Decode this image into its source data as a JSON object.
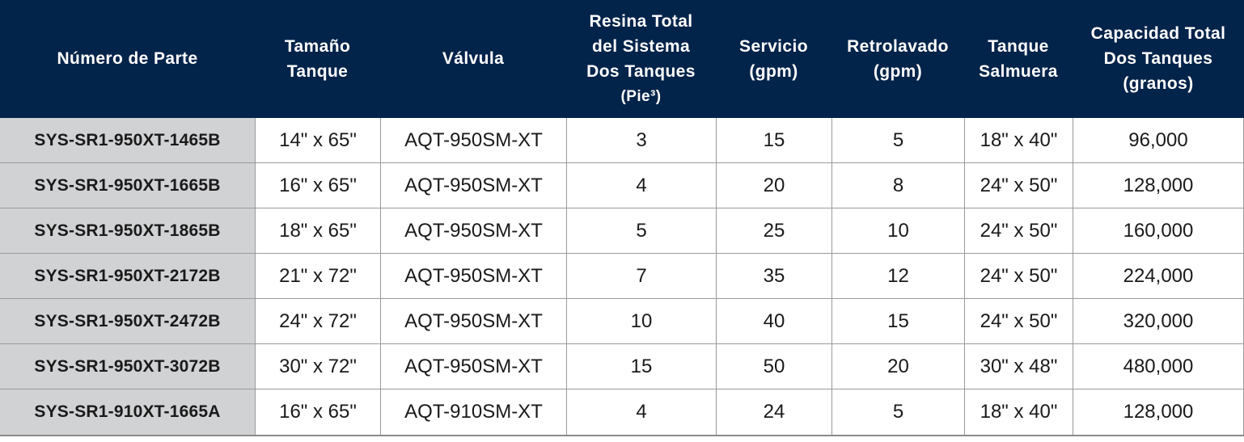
{
  "headers": [
    [
      "Número de Parte"
    ],
    [
      "Tamaño",
      "Tanque"
    ],
    [
      "Válvula"
    ],
    [
      "Resina Total",
      "del Sistema",
      "Dos Tanques",
      "(Pie³)"
    ],
    [
      "Servicio",
      "(gpm)"
    ],
    [
      "Retrolavado",
      "(gpm)"
    ],
    [
      "Tanque",
      "Salmuera"
    ],
    [
      "Capacidad Total",
      "Dos Tanques",
      "(granos)"
    ]
  ],
  "rows": [
    [
      "SYS-SR1-950XT-1465B",
      "14\" x 65\"",
      "AQT-950SM-XT",
      "3",
      "15",
      "5",
      "18\" x 40\"",
      "96,000"
    ],
    [
      "SYS-SR1-950XT-1665B",
      "16\" x 65\"",
      "AQT-950SM-XT",
      "4",
      "20",
      "8",
      "24\" x 50\"",
      "128,000"
    ],
    [
      "SYS-SR1-950XT-1865B",
      "18\" x 65\"",
      "AQT-950SM-XT",
      "5",
      "25",
      "10",
      "24\" x 50\"",
      "160,000"
    ],
    [
      "SYS-SR1-950XT-2172B",
      "21\" x 72\"",
      "AQT-950SM-XT",
      "7",
      "35",
      "12",
      "24\" x 50\"",
      "224,000"
    ],
    [
      "SYS-SR1-950XT-2472B",
      "24\" x 72\"",
      "AQT-950SM-XT",
      "10",
      "40",
      "15",
      "24\" x 50\"",
      "320,000"
    ],
    [
      "SYS-SR1-950XT-3072B",
      "30\" x 72\"",
      "AQT-950SM-XT",
      "15",
      "50",
      "20",
      "30\" x 48\"",
      "480,000"
    ],
    [
      "SYS-SR1-910XT-1665A",
      "16\" x 65\"",
      "AQT-910SM-XT",
      "4",
      "24",
      "5",
      "18\" x 40\"",
      "128,000"
    ]
  ],
  "colors": {
    "header_bg": "#02234a",
    "header_text": "#ffffff",
    "part_col_bg": "#d1d2d4",
    "grid_line": "#9a9a9a"
  }
}
